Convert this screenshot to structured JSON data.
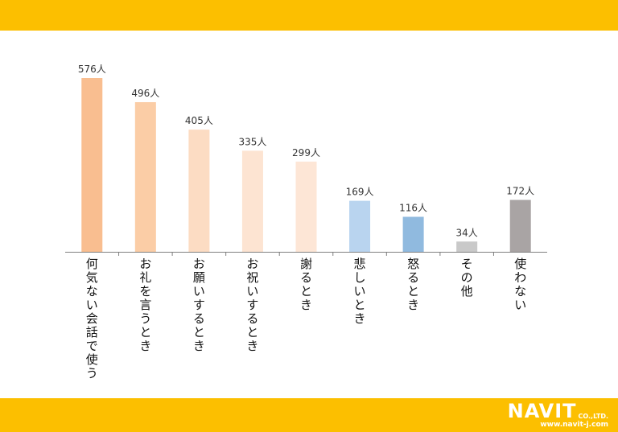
{
  "chart_data": {
    "type": "bar",
    "categories": [
      "何気ない会話で使う",
      "お礼を言うとき",
      "お願いするとき",
      "お祝いするとき",
      "謝るとき",
      "悲しいとき",
      "怒るとき",
      "その他",
      "使わない"
    ],
    "values": [
      576,
      496,
      405,
      335,
      299,
      169,
      116,
      34,
      172
    ],
    "value_labels": [
      "576人",
      "496人",
      "405人",
      "335人",
      "299人",
      "169人",
      "116人",
      "34人",
      "172人"
    ],
    "colors": [
      "#f9be90",
      "#fbcda6",
      "#fcdcc3",
      "#fde4d2",
      "#fde6d6",
      "#b9d4ef",
      "#90badf",
      "#c9c9c9",
      "#a9a4a4"
    ],
    "title": "",
    "xlabel": "",
    "ylabel": "",
    "ylim": [
      0,
      576
    ],
    "grid": false,
    "legend": "none"
  },
  "branding": {
    "logo_name": "NAVIT",
    "logo_suffix": "CO.,LTD.",
    "logo_url": "www.navit-j.com"
  },
  "theme": {
    "band_color": "#fcbf00"
  }
}
